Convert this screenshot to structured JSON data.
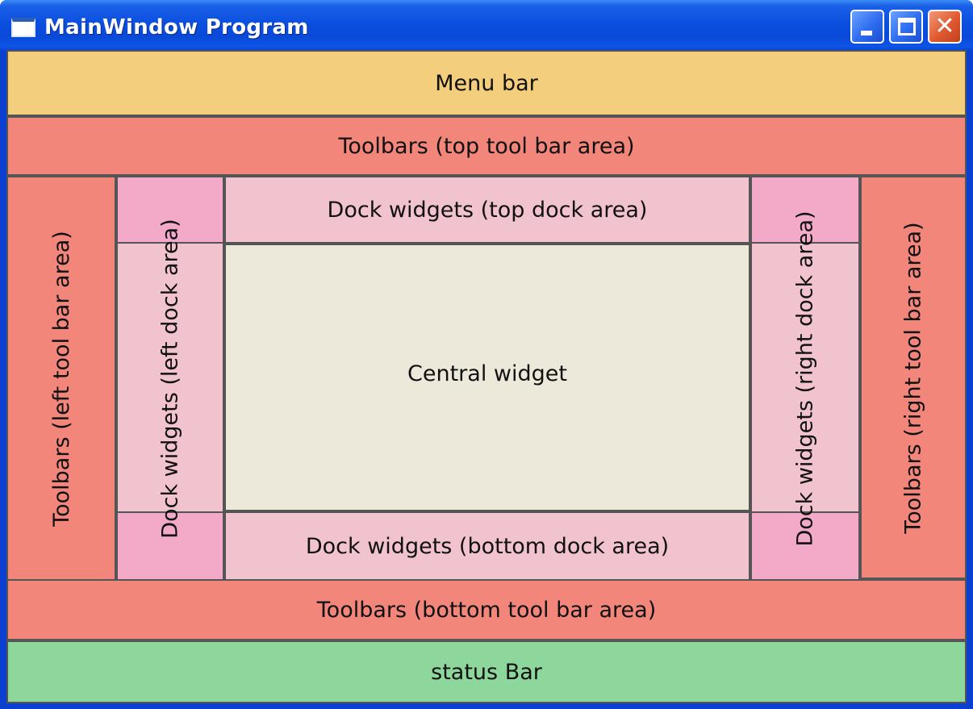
{
  "window": {
    "title": "MainWindow Program",
    "icon": "application-window-icon",
    "controls": {
      "minimize": "minimize-icon",
      "maximize": "maximize-icon",
      "close": "close-icon",
      "close_glyph": "✕"
    }
  },
  "regions": {
    "menu_bar": "Menu bar",
    "toolbar_top": "Toolbars (top tool bar area)",
    "toolbar_left": "Toolbars (left tool bar area)",
    "toolbar_right": "Toolbars (right tool bar area)",
    "toolbar_bottom": "Toolbars (bottom tool bar area)",
    "dock_top": "Dock widgets (top dock area)",
    "dock_left": "Dock widgets (left dock area)",
    "dock_right": "Dock widgets (right dock area)",
    "dock_bottom": "Dock widgets (bottom dock area)",
    "central_widget": "Central widget",
    "status_bar": "status Bar"
  },
  "colors": {
    "menu_bar": "#f2ce7d",
    "toolbars": "#f2867b",
    "dock_widgets": "#f1c3cf",
    "dock_corners": "#f2aac8",
    "central_widget": "#ece8da",
    "status_bar": "#8dd69c",
    "titlebar": "#0b4fe0"
  }
}
